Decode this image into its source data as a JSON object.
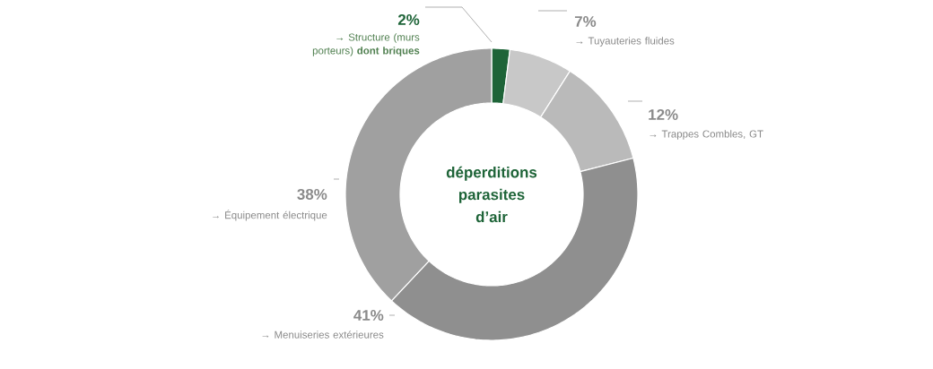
{
  "chart_data": {
    "type": "donut",
    "title": "déperditions parasites d’air",
    "categories": [
      "→ Structure (murs porteurs) **dont briques**",
      "→ Tuyauteries fluides",
      "→ Trappes Combles, GT",
      "→ Menuiseries extérieures",
      "→ Équipement électrique"
    ],
    "values": [
      2,
      7,
      12,
      41,
      38
    ],
    "colors": [
      "#1e6438",
      "#c8c8c8",
      "#bababa",
      "#8f8f8f",
      "#a0a0a0"
    ],
    "value_labels": [
      "2%",
      "7%",
      "12%",
      "41%",
      "38%"
    ]
  }
}
